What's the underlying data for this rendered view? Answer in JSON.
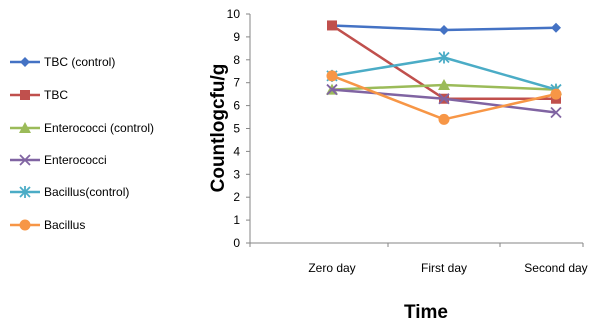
{
  "chart_data": {
    "type": "line",
    "title": "",
    "xlabel": "Time",
    "ylabel": "Countlogcfu/g",
    "categories": [
      "Zero day",
      "First day",
      "Second day"
    ],
    "ylim": [
      0,
      10
    ],
    "yticks": [
      0,
      1,
      2,
      3,
      4,
      5,
      6,
      7,
      8,
      9,
      10
    ],
    "grid": false,
    "legend_position": "left",
    "series": [
      {
        "name": "TBC (control)",
        "values": [
          9.5,
          9.3,
          9.4
        ],
        "color": "#4472C4",
        "marker": "diamond"
      },
      {
        "name": "TBC",
        "values": [
          9.5,
          6.3,
          6.3
        ],
        "color": "#C0504D",
        "marker": "square"
      },
      {
        "name": "Enterococci (control)",
        "values": [
          6.7,
          6.9,
          6.7
        ],
        "color": "#9BBB59",
        "marker": "triangle"
      },
      {
        "name": "Enterococci",
        "values": [
          6.7,
          6.3,
          5.7
        ],
        "color": "#8064A2",
        "marker": "x"
      },
      {
        "name": "Bacillus(control)",
        "values": [
          7.3,
          8.1,
          6.7
        ],
        "color": "#4BACC6",
        "marker": "star"
      },
      {
        "name": "Bacillus",
        "values": [
          7.3,
          5.4,
          6.5
        ],
        "color": "#F79646",
        "marker": "circle"
      }
    ]
  }
}
